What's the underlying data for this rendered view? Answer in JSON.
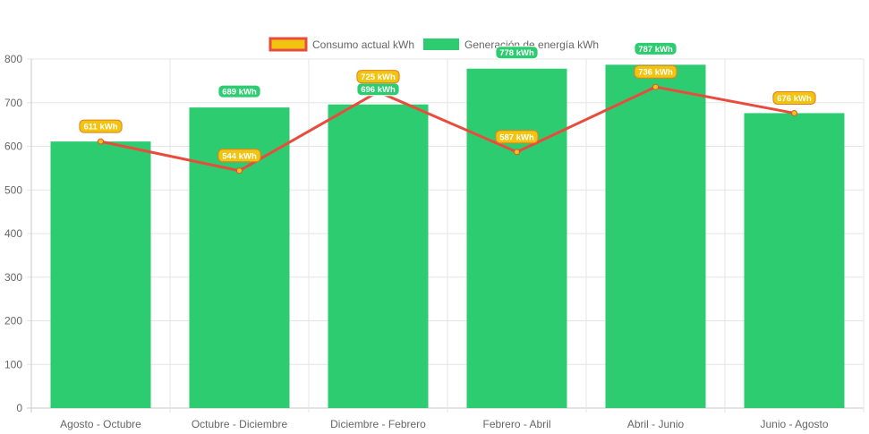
{
  "chart_data": {
    "type": "bar",
    "categories": [
      "Agosto - Octubre",
      "Octubre - Diciembre",
      "Diciembre - Febrero",
      "Febrero - Abril",
      "Abril - Junio",
      "Junio - Agosto"
    ],
    "series": [
      {
        "name": "Consumo actual kWh",
        "type": "line",
        "values": [
          611,
          544,
          725,
          587,
          736,
          676
        ],
        "labels": [
          "611 kWh",
          "544 kWh",
          "725 kWh",
          "587 kWh",
          "736 kWh",
          "676 kWh"
        ],
        "color": "#e74c3c",
        "fill": "#f1c40f"
      },
      {
        "name": "Generación de energía kWh",
        "type": "bar",
        "values": [
          611,
          689,
          696,
          778,
          787,
          676
        ],
        "labels": [
          "",
          "689 kWh",
          "696 kWh",
          "778 kWh",
          "787 kWh",
          ""
        ],
        "color": "#2ecc71"
      }
    ],
    "ylim": [
      0,
      800
    ],
    "yticks": [
      "0",
      "100",
      "200",
      "300",
      "400",
      "500",
      "600",
      "700",
      "800"
    ],
    "grid": true,
    "legend": "top-center"
  }
}
